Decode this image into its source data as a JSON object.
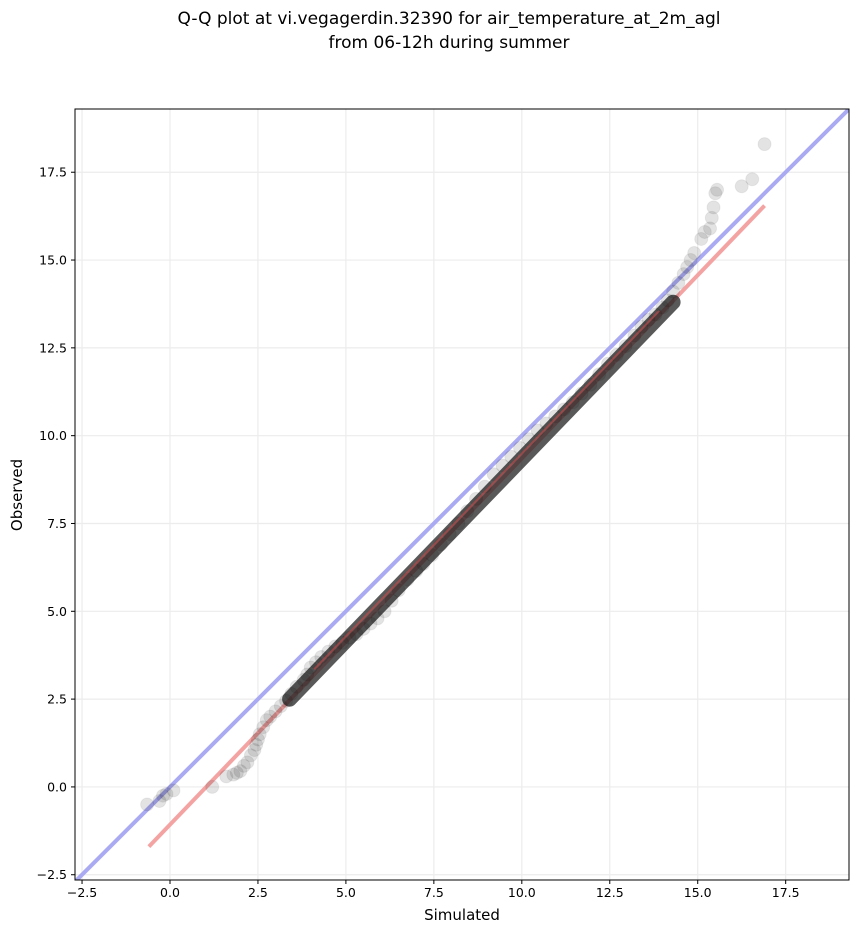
{
  "chart_data": {
    "type": "scatter",
    "title_line1": "Q-Q plot at vi.vegagerdin.32390 for air_temperature_at_2m_agl",
    "title_line2": "from 06-12h during summer",
    "xlabel": "Simulated",
    "ylabel": "Observed",
    "xlim": [
      -2.7,
      19.3
    ],
    "ylim": [
      -2.65,
      19.3
    ],
    "xticks": [
      -2.5,
      0.0,
      2.5,
      5.0,
      7.5,
      10.0,
      12.5,
      15.0,
      17.5
    ],
    "yticks": [
      -2.5,
      0.0,
      2.5,
      5.0,
      7.5,
      10.0,
      12.5,
      15.0,
      17.5
    ],
    "xtick_labels": [
      "−2.5",
      "0.0",
      "2.5",
      "5.0",
      "7.5",
      "10.0",
      "12.5",
      "15.0",
      "17.5"
    ],
    "ytick_labels": [
      "−2.5",
      "0.0",
      "2.5",
      "5.0",
      "7.5",
      "10.0",
      "12.5",
      "15.0",
      "17.5"
    ],
    "grid": true,
    "identity_line": {
      "color": "#aaaaf2",
      "from": [
        -2.7,
        -2.7
      ],
      "to": [
        19.3,
        19.3
      ]
    },
    "fit_line": {
      "color": "#f4a3a3",
      "from": [
        -0.6,
        -1.7
      ],
      "to": [
        16.9,
        16.55
      ]
    },
    "dense_segment": {
      "from": [
        3.4,
        2.5
      ],
      "to": [
        14.3,
        13.8
      ]
    },
    "point_color": "#000000",
    "quantiles": [
      [
        -0.65,
        -0.5
      ],
      [
        -0.3,
        -0.4
      ],
      [
        -0.2,
        -0.25
      ],
      [
        -0.1,
        -0.2
      ],
      [
        0.1,
        -0.1
      ],
      [
        1.2,
        0.0
      ],
      [
        1.6,
        0.3
      ],
      [
        1.8,
        0.35
      ],
      [
        1.9,
        0.4
      ],
      [
        2.0,
        0.45
      ],
      [
        2.1,
        0.6
      ],
      [
        2.2,
        0.7
      ],
      [
        2.3,
        0.9
      ],
      [
        2.4,
        1.05
      ],
      [
        2.45,
        1.2
      ],
      [
        2.5,
        1.35
      ],
      [
        2.55,
        1.5
      ],
      [
        2.65,
        1.7
      ],
      [
        2.75,
        1.9
      ],
      [
        2.85,
        2.0
      ],
      [
        3.0,
        2.15
      ],
      [
        3.15,
        2.3
      ],
      [
        3.3,
        2.45
      ],
      [
        3.45,
        2.65
      ],
      [
        3.6,
        2.85
      ],
      [
        3.8,
        3.05
      ],
      [
        3.9,
        3.2
      ],
      [
        4.0,
        3.4
      ],
      [
        4.15,
        3.55
      ],
      [
        4.3,
        3.7
      ],
      [
        4.5,
        3.85
      ],
      [
        4.7,
        4.0
      ],
      [
        4.9,
        4.1
      ],
      [
        5.1,
        4.25
      ],
      [
        5.3,
        4.35
      ],
      [
        5.5,
        4.5
      ],
      [
        5.7,
        4.65
      ],
      [
        5.9,
        4.8
      ],
      [
        6.1,
        5.0
      ],
      [
        6.3,
        5.3
      ],
      [
        6.5,
        5.6
      ],
      [
        6.75,
        5.9
      ],
      [
        7.0,
        6.15
      ],
      [
        7.2,
        6.35
      ],
      [
        7.45,
        6.6
      ],
      [
        7.7,
        6.9
      ],
      [
        7.95,
        7.2
      ],
      [
        8.2,
        7.5
      ],
      [
        8.45,
        7.85
      ],
      [
        8.7,
        8.2
      ],
      [
        8.95,
        8.55
      ],
      [
        9.2,
        8.9
      ],
      [
        9.45,
        9.15
      ],
      [
        9.7,
        9.4
      ],
      [
        9.95,
        9.65
      ],
      [
        10.2,
        9.9
      ],
      [
        10.45,
        10.15
      ],
      [
        10.7,
        10.35
      ],
      [
        10.95,
        10.55
      ],
      [
        11.2,
        10.75
      ],
      [
        11.45,
        10.95
      ],
      [
        11.7,
        11.2
      ],
      [
        11.95,
        11.45
      ],
      [
        12.2,
        11.75
      ],
      [
        12.45,
        12.05
      ],
      [
        12.7,
        12.3
      ],
      [
        12.95,
        12.55
      ],
      [
        13.2,
        12.85
      ],
      [
        13.4,
        13.1
      ],
      [
        13.6,
        13.3
      ],
      [
        13.8,
        13.45
      ],
      [
        14.0,
        13.65
      ],
      [
        14.15,
        13.85
      ],
      [
        14.3,
        14.1
      ],
      [
        14.45,
        14.35
      ],
      [
        14.6,
        14.6
      ],
      [
        14.7,
        14.8
      ],
      [
        14.8,
        15.0
      ],
      [
        14.9,
        15.2
      ],
      [
        15.1,
        15.6
      ],
      [
        15.2,
        15.8
      ],
      [
        15.35,
        15.9
      ],
      [
        15.4,
        16.2
      ],
      [
        15.45,
        16.5
      ],
      [
        15.5,
        16.9
      ],
      [
        15.55,
        17.0
      ],
      [
        16.25,
        17.1
      ],
      [
        16.55,
        17.3
      ],
      [
        16.9,
        18.3
      ]
    ]
  }
}
